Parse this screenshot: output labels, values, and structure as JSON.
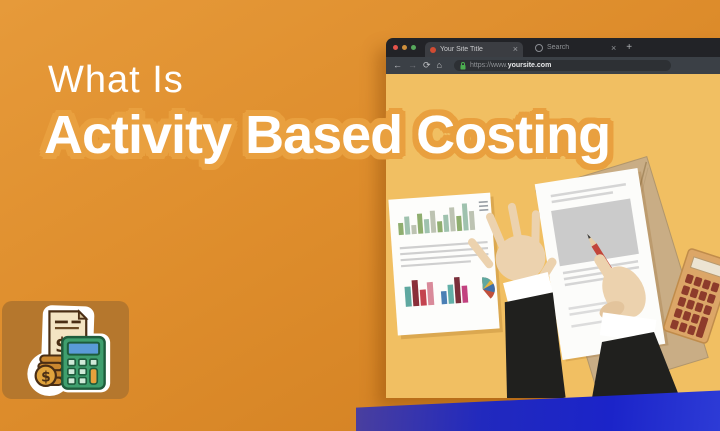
{
  "title": {
    "line1": "What Is",
    "line2": "Activity Based Costing"
  },
  "browser": {
    "tabs": [
      {
        "label": "Your Site Title"
      },
      {
        "label": "Search"
      }
    ],
    "close_glyph": "×",
    "new_tab_glyph": "+",
    "nav": {
      "back": "←",
      "forward": "→",
      "reload": "⟳",
      "home": "⌂"
    },
    "address": {
      "prefix": "https://www.",
      "domain": "yoursite.com"
    },
    "traffic_lights": [
      "#e5534b",
      "#ce8f3c",
      "#57a95c"
    ]
  },
  "colors": {
    "background_orange": "#de8d2c",
    "content_amber": "#f1bf62",
    "title_halo": "#e9a03f",
    "ribbon_blue": "#1b24c9",
    "panel_brown": "#b5772d",
    "suit_black": "#20201e",
    "skin": "#ecd2ae",
    "kraft_envelope": "#c9ad85",
    "pencil_red": "#c2453a",
    "calculator_tan": "#dca667",
    "badge_green": "#3f9f6e"
  },
  "chart_data": [
    {
      "type": "bar",
      "title": "",
      "context": "document-top-bar-chart",
      "values": [
        12,
        18,
        9,
        20,
        14,
        22,
        11,
        17,
        24,
        15,
        27,
        19
      ],
      "colors": [
        "#8fae6f",
        "#9fc2ae",
        "#bdc3b2"
      ]
    },
    {
      "type": "bar",
      "title": "",
      "context": "document-small-chart-left",
      "values": [
        20,
        26,
        16,
        23
      ],
      "colors": [
        "#5fa8a0",
        "#8a2f3a",
        "#c4434f",
        "#d98a9a"
      ]
    },
    {
      "type": "bar",
      "title": "",
      "context": "document-small-chart-right",
      "values": [
        13,
        19,
        26,
        17
      ],
      "colors": [
        "#4a7fb5",
        "#62b0a8",
        "#7a2f3a",
        "#c2427f"
      ]
    },
    {
      "type": "pie",
      "title": "",
      "context": "document-pie-chart",
      "values": [
        40,
        30,
        18,
        12
      ],
      "colors": [
        "#c0503c",
        "#3f6fa8",
        "#e3b33e",
        "#5fa8a0"
      ]
    }
  ]
}
